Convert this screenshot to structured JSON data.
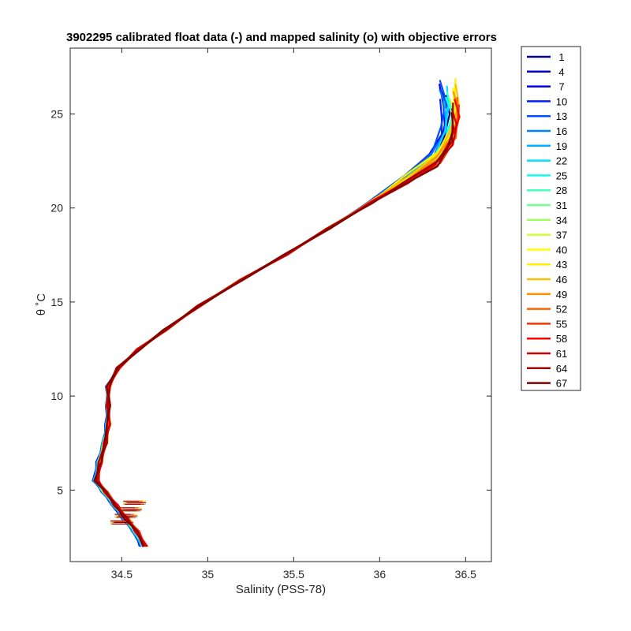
{
  "chart_data": {
    "type": "line",
    "title": "3902295 calibrated float data (-) and mapped salinity (o) with objective errors",
    "xlabel": "Salinity (PSS-78)",
    "ylabel": "θ ˚C",
    "xlim": [
      34.2,
      36.65
    ],
    "ylim": [
      1.2,
      28.5
    ],
    "xticks": [
      34.5,
      35,
      35.5,
      36,
      36.5
    ],
    "yticks": [
      5,
      10,
      15,
      20,
      25
    ],
    "legend_position": "outside-right",
    "grid": false,
    "series": [
      {
        "name": "1",
        "color": "#00008F",
        "offset": [
          -0.02,
          0.0
        ]
      },
      {
        "name": "4",
        "color": "#0000BF",
        "offset": [
          -0.04,
          0.4
        ]
      },
      {
        "name": "7",
        "color": "#0000EF",
        "offset": [
          -0.05,
          0.6
        ]
      },
      {
        "name": "10",
        "color": "#0020FF",
        "offset": [
          -0.06,
          -0.2
        ]
      },
      {
        "name": "13",
        "color": "#0050FF",
        "offset": [
          -0.05,
          0.8
        ]
      },
      {
        "name": "16",
        "color": "#0080FF",
        "offset": [
          -0.04,
          0.3
        ]
      },
      {
        "name": "19",
        "color": "#00AFFF",
        "offset": [
          -0.03,
          -0.3
        ]
      },
      {
        "name": "22",
        "color": "#00DFFF",
        "offset": [
          -0.02,
          0.5
        ]
      },
      {
        "name": "25",
        "color": "#10FFEF",
        "offset": [
          -0.01,
          -0.1
        ]
      },
      {
        "name": "28",
        "color": "#40FFBF",
        "offset": [
          0.0,
          0.2
        ]
      },
      {
        "name": "31",
        "color": "#70FF8F",
        "offset": [
          0.01,
          -0.4
        ]
      },
      {
        "name": "34",
        "color": "#9FFF60",
        "offset": [
          0.02,
          0.1
        ]
      },
      {
        "name": "37",
        "color": "#CFFF30",
        "offset": [
          0.02,
          -0.2
        ]
      },
      {
        "name": "40",
        "color": "#FFFF00",
        "offset": [
          0.03,
          0.4
        ]
      },
      {
        "name": "43",
        "color": "#FFEF00",
        "offset": [
          0.03,
          0.9
        ]
      },
      {
        "name": "46",
        "color": "#FFBF00",
        "offset": [
          0.04,
          0.6
        ]
      },
      {
        "name": "49",
        "color": "#FF9000",
        "offset": [
          0.04,
          0.2
        ]
      },
      {
        "name": "52",
        "color": "#FF6000",
        "offset": [
          0.05,
          -0.1
        ]
      },
      {
        "name": "55",
        "color": "#FF3000",
        "offset": [
          0.05,
          -0.5
        ]
      },
      {
        "name": "58",
        "color": "#FF0000",
        "offset": [
          0.04,
          -0.2
        ]
      },
      {
        "name": "61",
        "color": "#CF0000",
        "offset": [
          0.03,
          -0.7
        ]
      },
      {
        "name": "64",
        "color": "#A00000",
        "offset": [
          0.02,
          -0.4
        ]
      },
      {
        "name": "67",
        "color": "#800000",
        "offset": [
          0.01,
          -0.9
        ]
      }
    ],
    "base_profile": [
      [
        34.63,
        2.0
      ],
      [
        34.58,
        2.8
      ],
      [
        34.52,
        3.5
      ],
      [
        34.46,
        4.2
      ],
      [
        34.4,
        4.9
      ],
      [
        34.35,
        5.5
      ],
      [
        34.37,
        6.5
      ],
      [
        34.4,
        7.5
      ],
      [
        34.42,
        8.5
      ],
      [
        34.42,
        9.5
      ],
      [
        34.42,
        10.5
      ],
      [
        34.48,
        11.5
      ],
      [
        34.6,
        12.5
      ],
      [
        34.75,
        13.5
      ],
      [
        34.95,
        14.8
      ],
      [
        35.2,
        16.2
      ],
      [
        35.45,
        17.5
      ],
      [
        35.7,
        18.9
      ],
      [
        35.95,
        20.3
      ],
      [
        36.15,
        21.5
      ],
      [
        36.32,
        22.6
      ],
      [
        36.4,
        23.8
      ],
      [
        36.42,
        25.0
      ],
      [
        36.4,
        26.0
      ]
    ]
  }
}
